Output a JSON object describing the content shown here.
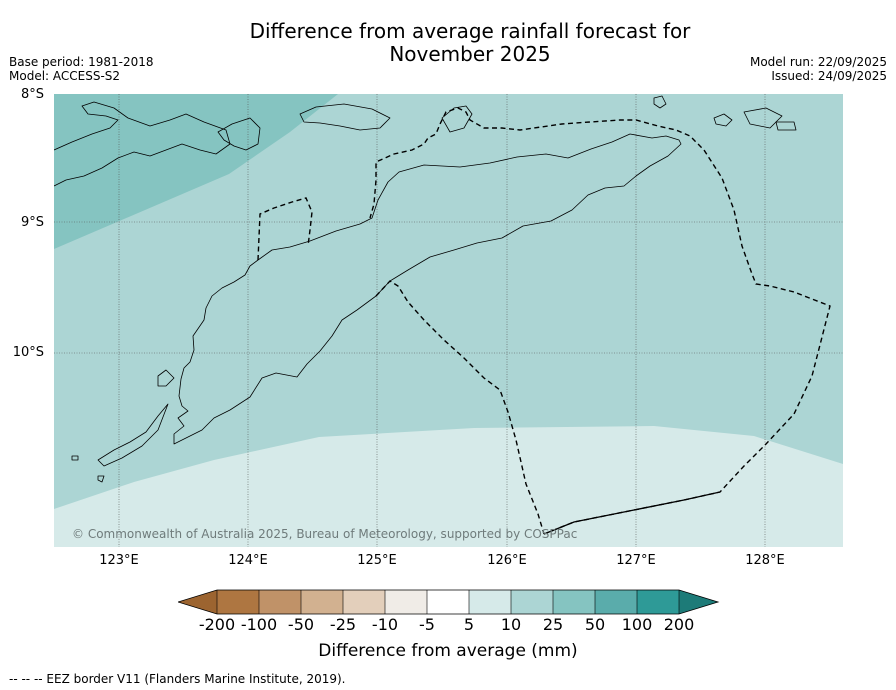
{
  "header": {
    "title_line1": "Difference from average rainfall forecast for",
    "title_line2": "November 2025",
    "base_period": "Base period: 1981-2018",
    "model": "Model: ACCESS-S2",
    "model_run": "Model run: 22/09/2025",
    "issued": "Issued: 24/09/2025"
  },
  "map": {
    "lat_labels": [
      "8°S",
      "9°S",
      "10°S"
    ],
    "lon_labels": [
      "123°E",
      "124°E",
      "125°E",
      "126°E",
      "127°E",
      "128°E"
    ],
    "attribution": "© Commonwealth of Australia 2025, Bureau of Meteorology, supported by COSPPac",
    "colors": {
      "band_25_50": "#85c4c1",
      "band_10_25": "#acd5d4",
      "band_5_10": "#d6eae9",
      "coast": "#000000"
    }
  },
  "legend": {
    "title": "Difference from average (mm)",
    "tick_labels": [
      "-200",
      "-100",
      "-50",
      "-25",
      "-10",
      "-5",
      "5",
      "10",
      "25",
      "50",
      "100",
      "200"
    ],
    "colors": [
      "#9c6430",
      "#ae7641",
      "#c09268",
      "#d2b190",
      "#e3cfbb",
      "#f0ece7",
      "#ffffff",
      "#d6eae9",
      "#acd5d4",
      "#85c4c1",
      "#5aacab",
      "#2e9a97",
      "#1d7b78"
    ]
  },
  "footer": {
    "eez_note": "--  --  -- EEZ border V11 (Flanders Marine Institute, 2019)."
  }
}
